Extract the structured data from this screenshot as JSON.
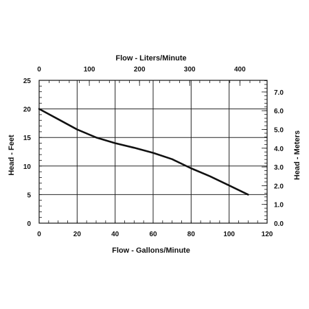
{
  "chart_data": {
    "type": "line",
    "title": "",
    "xlabel": "Flow - Gallons/Minute",
    "ylabel": "Head - Feet",
    "x2label": "Flow - Liters/Minute",
    "y2label": "Head - Meters",
    "xlim": [
      0,
      120
    ],
    "ylim": [
      0,
      25
    ],
    "x2lim": [
      0,
      454.25
    ],
    "y2lim": [
      0,
      7.62
    ],
    "grid": true,
    "x_ticks": [
      "0",
      "20",
      "40",
      "60",
      "80",
      "100",
      "120"
    ],
    "y_ticks": [
      "0",
      "5",
      "10",
      "15",
      "20",
      "25"
    ],
    "x2_ticks": [
      "0",
      "100",
      "200",
      "300",
      "400"
    ],
    "y2_ticks": [
      "0.0",
      "1.0",
      "2.0",
      "3.0",
      "4.0",
      "5.0",
      "6.0",
      "7.0"
    ],
    "series": [
      {
        "x": [
          0,
          10,
          20,
          30,
          40,
          50,
          60,
          70,
          80,
          90,
          100,
          110
        ],
        "y": [
          20,
          18.2,
          16.4,
          15,
          14,
          13.2,
          12.3,
          11.2,
          9.6,
          8.2,
          6.6,
          5
        ]
      }
    ]
  }
}
